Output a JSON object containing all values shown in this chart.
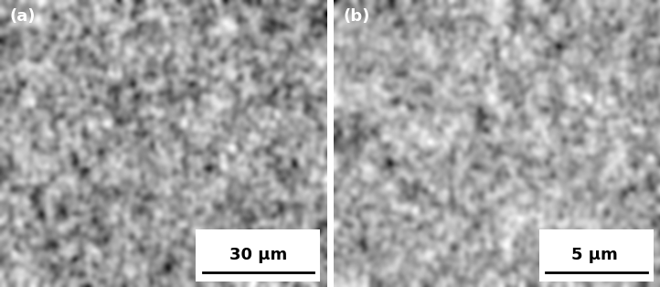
{
  "figsize": [
    7.22,
    3.14
  ],
  "dpi": 100,
  "label_a": "(a)",
  "label_b": "(b)",
  "scalebar_a_text": "30 μm",
  "scalebar_b_text": "5 μm",
  "label_fontsize": 13,
  "scalebar_fontsize": 13,
  "label_color": "white",
  "scalebar_color": "black",
  "scalebar_bg": "white",
  "bg_color_a": "#888888",
  "bg_color_b": "#999999"
}
